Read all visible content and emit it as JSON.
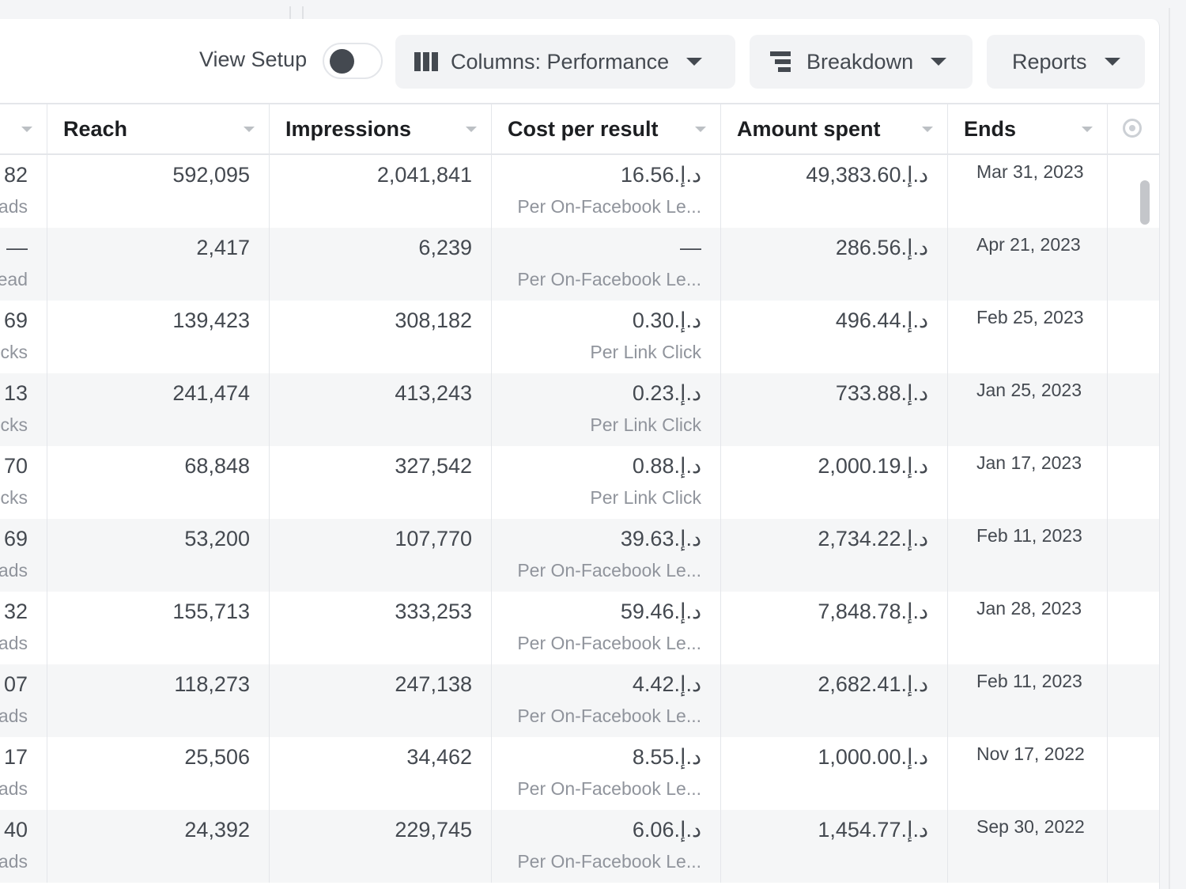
{
  "toolbar": {
    "view_setup_label": "View Setup",
    "columns_label": "Columns: Performance",
    "breakdown_label": "Breakdown",
    "reports_label": "Reports"
  },
  "table": {
    "headers": [
      "Reach",
      "Impressions",
      "Cost per result",
      "Amount spent",
      "Ends"
    ],
    "rows": [
      {
        "left_value": "82",
        "left_sub": "ads",
        "reach": "592,095",
        "impressions": "2,041,841",
        "cost": "16.56د.إ.‏",
        "cost_sub": "Per On-Facebook Le...",
        "spent": "49,383.60د.إ.‏",
        "ends": "Mar 31, 2023"
      },
      {
        "left_value": "—",
        "left_sub": "ead",
        "reach": "2,417",
        "impressions": "6,239",
        "cost": "—",
        "cost_sub": "Per On-Facebook Le...",
        "spent": "286.56د.إ.‏",
        "ends": "Apr 21, 2023"
      },
      {
        "left_value": "69",
        "left_sub": "cks",
        "reach": "139,423",
        "impressions": "308,182",
        "cost": "0.30د.إ.‏",
        "cost_sub": "Per Link Click",
        "spent": "496.44د.إ.‏",
        "ends": "Feb 25, 2023"
      },
      {
        "left_value": "13",
        "left_sub": "cks",
        "reach": "241,474",
        "impressions": "413,243",
        "cost": "0.23د.إ.‏",
        "cost_sub": "Per Link Click",
        "spent": "733.88د.إ.‏",
        "ends": "Jan 25, 2023"
      },
      {
        "left_value": "70",
        "left_sub": "cks",
        "reach": "68,848",
        "impressions": "327,542",
        "cost": "0.88د.إ.‏",
        "cost_sub": "Per Link Click",
        "spent": "2,000.19د.إ.‏",
        "ends": "Jan 17, 2023"
      },
      {
        "left_value": "69",
        "left_sub": "ads",
        "reach": "53,200",
        "impressions": "107,770",
        "cost": "39.63د.إ.‏",
        "cost_sub": "Per On-Facebook Le...",
        "spent": "2,734.22د.إ.‏",
        "ends": "Feb 11, 2023"
      },
      {
        "left_value": "32",
        "left_sub": "ads",
        "reach": "155,713",
        "impressions": "333,253",
        "cost": "59.46د.إ.‏",
        "cost_sub": "Per On-Facebook Le...",
        "spent": "7,848.78د.إ.‏",
        "ends": "Jan 28, 2023"
      },
      {
        "left_value": "07",
        "left_sub": "ads",
        "reach": "118,273",
        "impressions": "247,138",
        "cost": "4.42د.إ.‏",
        "cost_sub": "Per On-Facebook Le...",
        "spent": "2,682.41د.إ.‏",
        "ends": "Feb 11, 2023"
      },
      {
        "left_value": "17",
        "left_sub": "ads",
        "reach": "25,506",
        "impressions": "34,462",
        "cost": "8.55د.إ.‏",
        "cost_sub": "Per On-Facebook Le...",
        "spent": "1,000.00د.إ.‏",
        "ends": "Nov 17, 2022"
      },
      {
        "left_value": "40",
        "left_sub": "ads",
        "reach": "24,392",
        "impressions": "229,745",
        "cost": "6.06د.إ.‏",
        "cost_sub": "Per On-Facebook Le...",
        "spent": "1,454.77د.إ.‏",
        "ends": "Sep 30, 2022"
      }
    ]
  },
  "colors": {
    "background": "#f4f5f7",
    "panel": "#ffffff",
    "row_alt": "#f5f6f7",
    "text_primary": "#1c1e21",
    "text_secondary": "#90949c",
    "button_bg": "#f2f3f5"
  },
  "icons": {
    "columns": "columns-icon",
    "breakdown": "breakdown-icon",
    "caret": "caret-down-icon",
    "settings": "column-settings-icon",
    "sort": "sort-arrow-icon"
  }
}
